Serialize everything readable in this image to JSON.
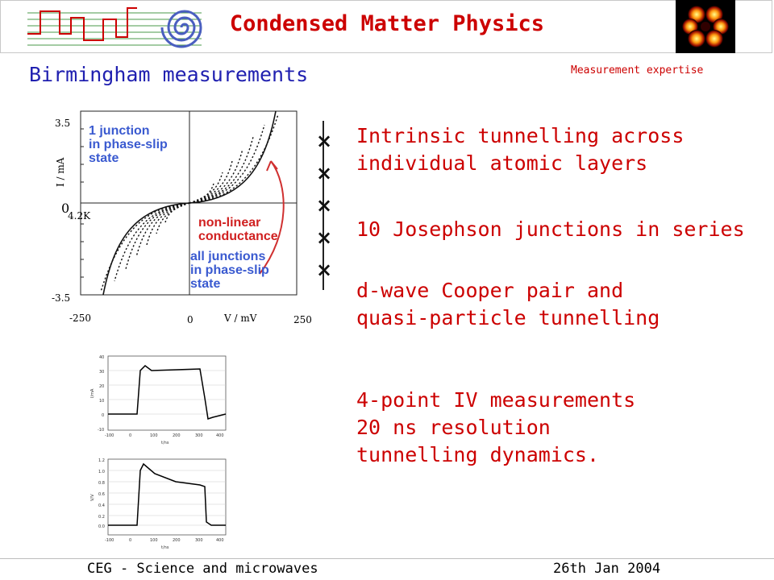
{
  "header": {
    "title": "Condensed Matter Physics"
  },
  "slide": {
    "subtitle": "Birmingham measurements",
    "corner_note": "Measurement expertise"
  },
  "iv_plot": {
    "y_top": "3.5",
    "y_zero": "0",
    "y_bottom": "-3.5",
    "y_label": "I / mA",
    "x_left": "-250",
    "x_zero": "0",
    "x_label": "V / mV",
    "x_right": "250",
    "temperature": "4.2K",
    "annot1_line1": "1 junction",
    "annot1_line2": "in phase-slip",
    "annot1_line3": "state",
    "annot2_line1": "non-linear",
    "annot2_line2": "conductance",
    "annot3_line1": "all junctions",
    "annot3_line2": "in phase-slip",
    "annot3_line3": "state"
  },
  "junction_marks": [
    "×",
    "×",
    "×",
    "×",
    "×"
  ],
  "bullets": {
    "b1_l1": "Intrinsic tunnelling across",
    "b1_l2": "individual atomic layers",
    "b2": "10 Josephson junctions in series",
    "b3_l1": "d-wave Cooper pair and",
    "b3_l2": "quasi-particle tunnelling",
    "b4_l1": "4-point  IV measurements",
    "b4_l2": "20 ns resolution",
    "b4_l3": "tunnelling dynamics."
  },
  "small_plot_top": {
    "ylabel": "I/mA",
    "xlabel": "t/ns",
    "y_ticks": [
      "40",
      "30",
      "20",
      "10",
      "0",
      "-10"
    ],
    "x_ticks": [
      "-100",
      "0",
      "100",
      "200",
      "300",
      "400"
    ]
  },
  "small_plot_bottom": {
    "ylabel": "V/V",
    "xlabel": "t/ns",
    "y_ticks": [
      "1.2",
      "1.0",
      "0.8",
      "0.6",
      "0.4",
      "0.2",
      "0.0"
    ],
    "x_ticks": [
      "-100",
      "0",
      "100",
      "200",
      "300",
      "400"
    ]
  },
  "footer": {
    "left": "CEG - Science and microwaves",
    "right": "26th Jan 2004"
  }
}
